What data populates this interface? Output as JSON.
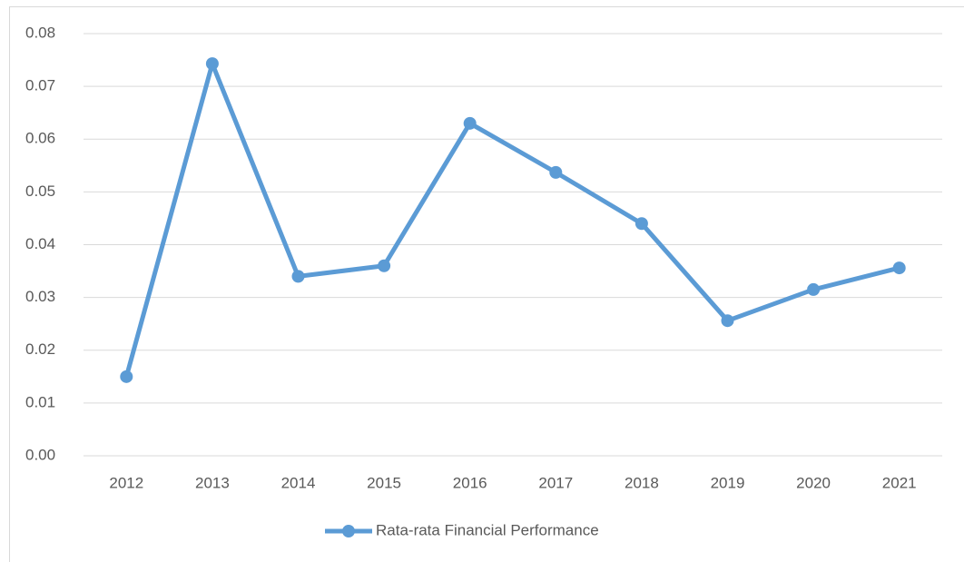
{
  "chart_data": {
    "type": "line",
    "categories": [
      "2012",
      "2013",
      "2014",
      "2015",
      "2016",
      "2017",
      "2018",
      "2019",
      "2020",
      "2021"
    ],
    "series": [
      {
        "name": "Rata-rata Financial Performance",
        "color": "#5b9bd5",
        "values": [
          0.015,
          0.0743,
          0.034,
          0.036,
          0.063,
          0.0537,
          0.044,
          0.0256,
          0.0315,
          0.0356
        ]
      }
    ],
    "ylim": [
      0,
      0.08
    ],
    "yticks": [
      {
        "value": 0,
        "label": "0.00"
      },
      0.01,
      0.02,
      0.03,
      0.04,
      0.05,
      0.06,
      0.07,
      0.08
    ],
    "grid": true,
    "legend": "bottom"
  }
}
